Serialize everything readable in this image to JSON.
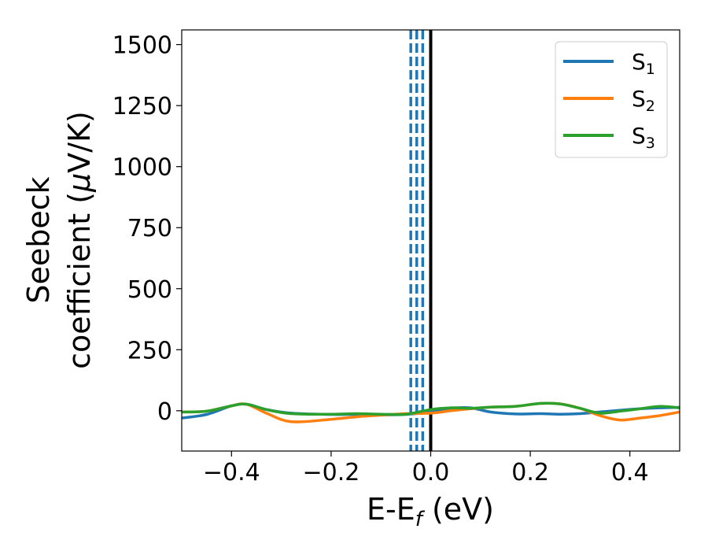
{
  "chart_data": {
    "type": "line",
    "xlabel": "E-E",
    "xlabel_sub": "f",
    "xlabel_unit": " (eV)",
    "ylabel_line1": "Seebeck",
    "ylabel_line2": "coefficient  (",
    "ylabel_mu": "μ",
    "ylabel_unit": "V/K)",
    "xlim": [
      -0.5,
      0.5
    ],
    "ylim": [
      -165,
      1560
    ],
    "x_ticks": [
      -0.4,
      -0.2,
      0.0,
      0.2,
      0.4
    ],
    "x_tick_labels": [
      "−0.4",
      "−0.2",
      "0.0",
      "0.2",
      "0.4"
    ],
    "y_ticks": [
      0,
      250,
      500,
      750,
      1000,
      1250,
      1500
    ],
    "y_tick_labels": [
      "0",
      "250",
      "500",
      "750",
      "1000",
      "1250",
      "1500"
    ],
    "grid": false,
    "legend_position": "top-right",
    "vlines": [
      {
        "x": -0.04,
        "style": "dashed",
        "color": "#1f77b4"
      },
      {
        "x": -0.028,
        "style": "dashed",
        "color": "#1f77b4"
      },
      {
        "x": -0.016,
        "style": "dashed",
        "color": "#1f77b4"
      },
      {
        "x": 0.0,
        "style": "solid",
        "color": "#000000"
      }
    ],
    "series": [
      {
        "name": "S",
        "sub": "1",
        "color": "#1f77b4",
        "x": [
          -0.5,
          -0.45,
          -0.4,
          -0.37,
          -0.33,
          -0.28,
          -0.2,
          -0.15,
          -0.1,
          -0.05,
          0.0,
          0.04,
          0.08,
          0.12,
          0.17,
          0.22,
          0.26,
          0.3,
          0.34,
          0.38,
          0.42,
          0.46,
          0.5
        ],
        "values": [
          -30,
          -15,
          20,
          27,
          5,
          -10,
          -15,
          -15,
          -17,
          -15,
          -5,
          10,
          12,
          -5,
          -13,
          -12,
          -14,
          -12,
          -5,
          2,
          8,
          12,
          14
        ]
      },
      {
        "name": "S",
        "sub": "2",
        "color": "#ff7f0e",
        "x": [
          -0.5,
          -0.45,
          -0.4,
          -0.37,
          -0.33,
          -0.28,
          -0.2,
          -0.15,
          -0.1,
          -0.05,
          0.0,
          0.04,
          0.08,
          0.12,
          0.17,
          0.22,
          0.26,
          0.3,
          0.34,
          0.38,
          0.42,
          0.46,
          0.5
        ],
        "values": [
          -5,
          -2,
          20,
          27,
          -10,
          -45,
          -35,
          -25,
          -18,
          -12,
          -10,
          0,
          8,
          15,
          18,
          30,
          28,
          10,
          -20,
          -38,
          -30,
          -20,
          -5
        ]
      },
      {
        "name": "S",
        "sub": "3",
        "color": "#2ca02c",
        "x": [
          -0.5,
          -0.45,
          -0.4,
          -0.37,
          -0.33,
          -0.28,
          -0.2,
          -0.15,
          -0.1,
          -0.05,
          0.0,
          0.04,
          0.08,
          0.12,
          0.17,
          0.22,
          0.26,
          0.3,
          0.34,
          0.38,
          0.42,
          0.46,
          0.5
        ],
        "values": [
          -5,
          -2,
          20,
          27,
          5,
          -12,
          -14,
          -12,
          -14,
          -14,
          5,
          12,
          10,
          15,
          18,
          30,
          28,
          10,
          -10,
          -2,
          8,
          18,
          12
        ]
      }
    ]
  }
}
